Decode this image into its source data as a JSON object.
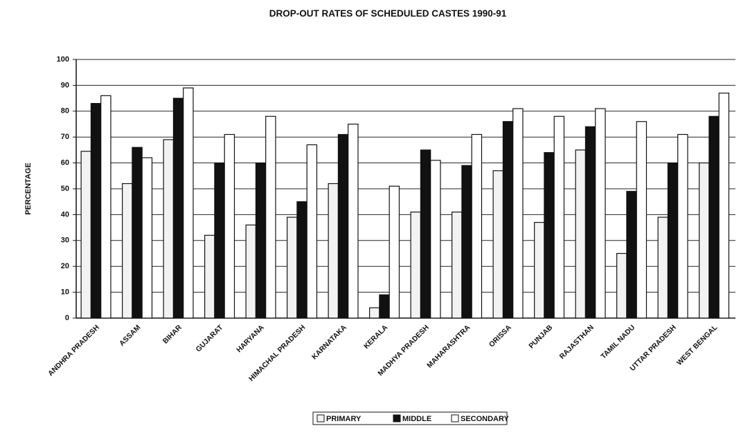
{
  "chart_data": {
    "type": "bar",
    "title": "DROP-OUT RATES OF SCHEDULED CASTES 1990-91",
    "y_label": "PERCENTAGE",
    "categories": [
      "ANDHRA PRADESH",
      "ASSAM",
      "BIHAR",
      "GUJARAT",
      "HARYANA",
      "HIMACHAL PRADESH",
      "KARNATAKA",
      "KERALA",
      "MADHYA PRADESH",
      "MAHARASHTRA",
      "ORISSA",
      "PUNJAB",
      "RAJASTHAN",
      "TAMIL NADU",
      "UTTAR PRADESH",
      "WEST BENGAL"
    ],
    "series": [
      {
        "name": "PRIMARY",
        "color": "#f2f2f2",
        "values": [
          64.5,
          52,
          69,
          32,
          36,
          39,
          52,
          4,
          41,
          41,
          57,
          37,
          65,
          25,
          39,
          60
        ]
      },
      {
        "name": "MIDDLE",
        "color": "#111111",
        "values": [
          83,
          66,
          85,
          60,
          60,
          45,
          71,
          9,
          65,
          59,
          76,
          64,
          74,
          49,
          60,
          78
        ]
      },
      {
        "name": "SECONDARY",
        "color": "#ffffff",
        "values": [
          86,
          62,
          89,
          71,
          78,
          67,
          75,
          51,
          61,
          71,
          81,
          78,
          81,
          76,
          71,
          87
        ]
      }
    ],
    "ylim": [
      0,
      100
    ],
    "yticks": [
      0,
      10,
      20,
      30,
      40,
      50,
      60,
      70,
      80,
      90,
      100
    ],
    "grid": true,
    "legend": "bottom"
  }
}
